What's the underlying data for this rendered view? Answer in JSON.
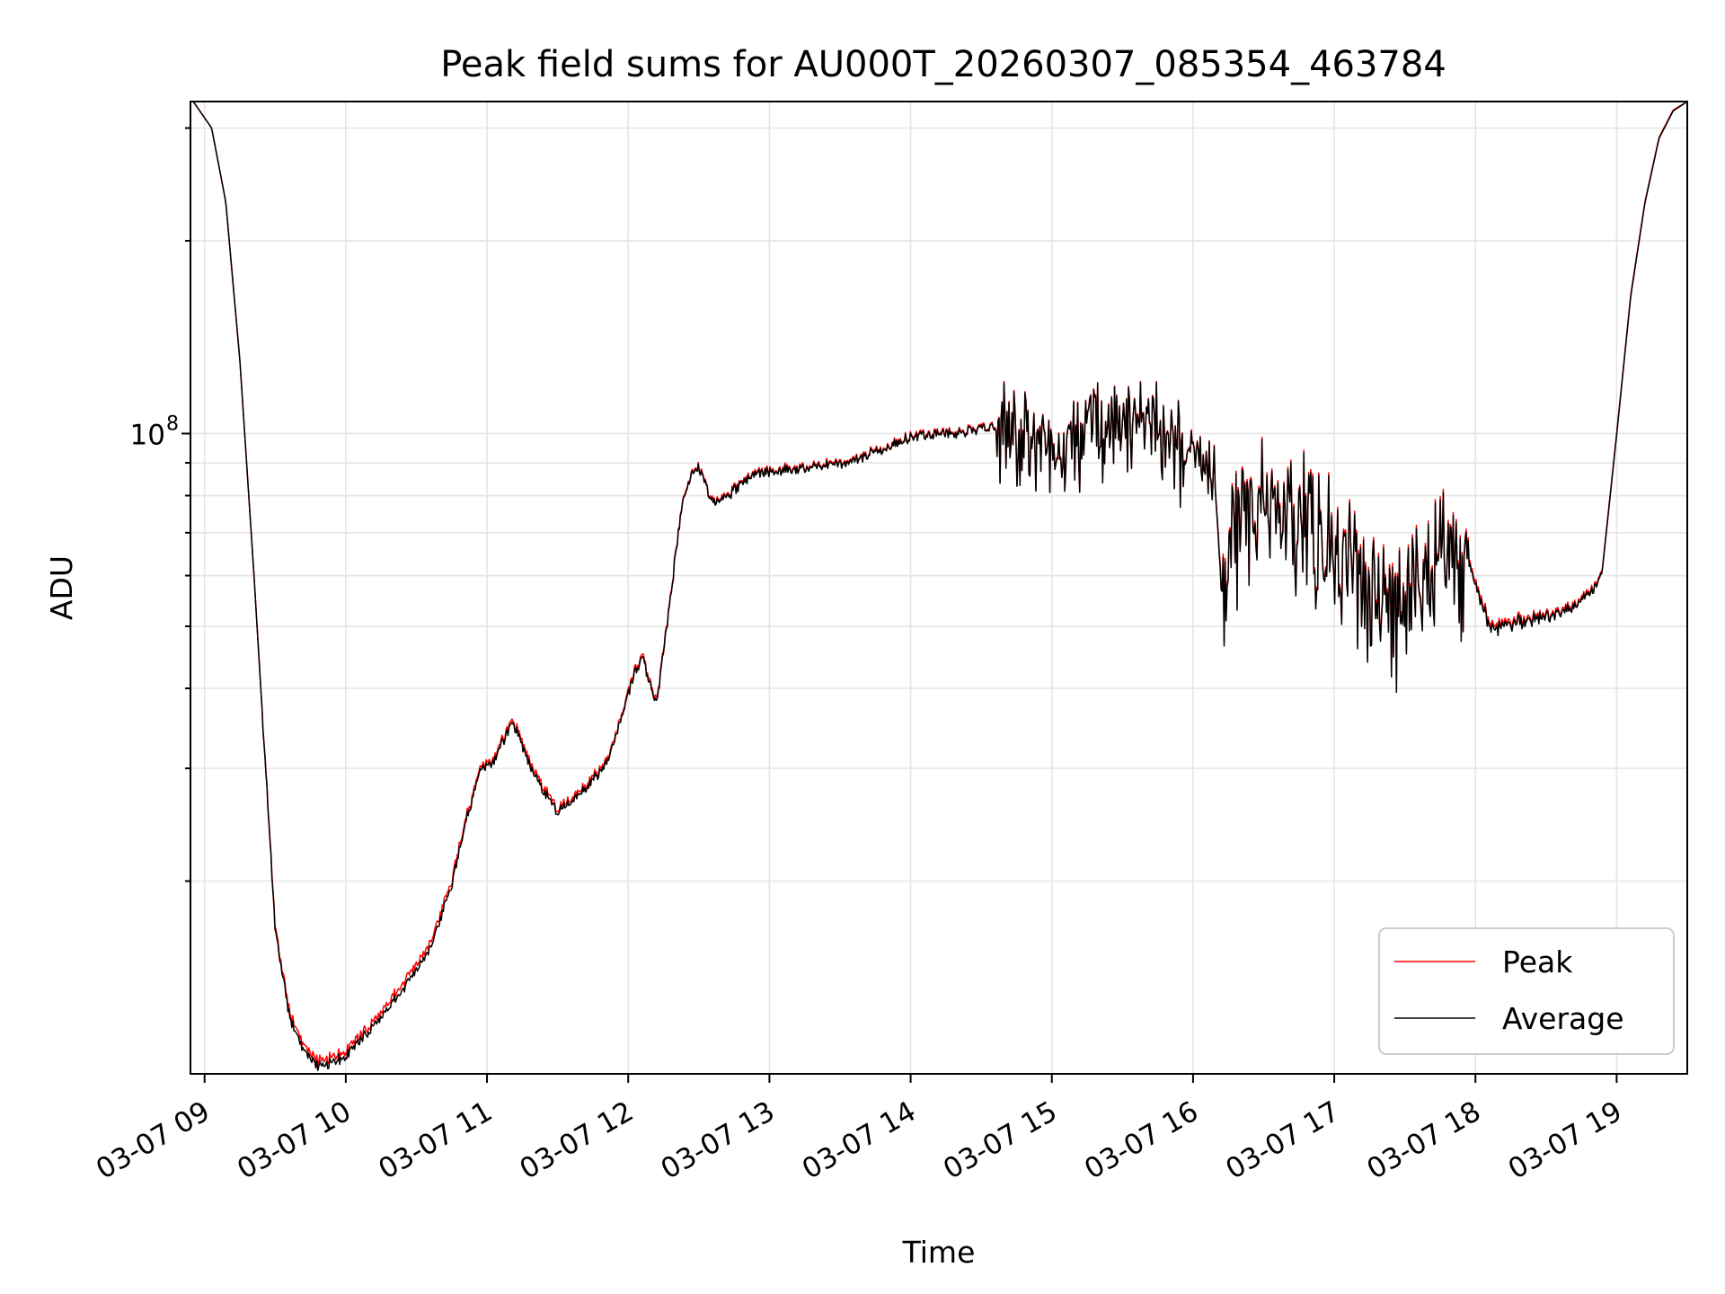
{
  "chart_data": {
    "type": "line",
    "title": "Peak field sums for AU000T_20260307_085354_463784",
    "xlabel": "Time",
    "ylabel": "ADU",
    "x_unit": "hours since 2026-03-07 00:00",
    "xlim": [
      8.9,
      19.5
    ],
    "y_scale": "log",
    "ylim": [
      10000000,
      330000000
    ],
    "x_ticks": [
      {
        "value": 9,
        "label": "03-07 09"
      },
      {
        "value": 10,
        "label": "03-07 10"
      },
      {
        "value": 11,
        "label": "03-07 11"
      },
      {
        "value": 12,
        "label": "03-07 12"
      },
      {
        "value": 13,
        "label": "03-07 13"
      },
      {
        "value": 14,
        "label": "03-07 14"
      },
      {
        "value": 15,
        "label": "03-07 15"
      },
      {
        "value": 16,
        "label": "03-07 16"
      },
      {
        "value": 17,
        "label": "03-07 17"
      },
      {
        "value": 18,
        "label": "03-07 18"
      },
      {
        "value": 19,
        "label": "03-07 19"
      }
    ],
    "y_major_ticks": [
      {
        "value": 100000000,
        "base": "10",
        "exp": "8"
      }
    ],
    "y_minor_ticks": [
      20000000,
      30000000,
      40000000,
      50000000,
      60000000,
      70000000,
      80000000,
      90000000,
      200000000,
      300000000
    ],
    "grid": true,
    "legend_position": "lower-right",
    "series": [
      {
        "name": "Peak",
        "color": "#ff0000",
        "noise": 0.022,
        "x": [
          8.92,
          9.05,
          9.15,
          9.25,
          9.35,
          9.5,
          9.6,
          9.7,
          9.8,
          9.9,
          10.0,
          10.2,
          10.4,
          10.6,
          10.75,
          10.85,
          10.95,
          11.05,
          11.18,
          11.3,
          11.4,
          11.5,
          11.6,
          11.75,
          11.85,
          11.95,
          12.03,
          12.1,
          12.2,
          12.3,
          12.38,
          12.45,
          12.5,
          12.6,
          12.7,
          12.8,
          12.9,
          13.1,
          13.3,
          13.5,
          13.7,
          13.9,
          14.0,
          14.2,
          14.4,
          14.6,
          14.8,
          15.0,
          15.2,
          15.4,
          15.6,
          15.8,
          15.9,
          16.0,
          16.15,
          16.2,
          16.3,
          16.5,
          16.7,
          16.9,
          17.0,
          17.2,
          17.4,
          17.6,
          17.8,
          17.95,
          18.1,
          18.3,
          18.5,
          18.7,
          18.85,
          18.9,
          19.0,
          19.1,
          19.2,
          19.3,
          19.4,
          19.5
        ],
        "y": [
          330000000,
          300000000,
          230000000,
          130000000,
          60000000,
          17000000,
          12500000,
          11000000,
          10500000,
          10600000,
          10900000,
          12100000,
          13800000,
          16000000,
          20000000,
          25000000,
          30000000,
          31000000,
          36000000,
          31000000,
          28000000,
          26000000,
          27000000,
          29000000,
          31000000,
          36000000,
          42000000,
          45000000,
          38000000,
          56000000,
          78000000,
          87000000,
          89000000,
          78000000,
          80000000,
          84000000,
          87000000,
          88000000,
          89000000,
          90000000,
          93000000,
          97000000,
          99000000,
          100000000,
          101000000,
          103000000,
          98000000,
          95000000,
          97000000,
          105000000,
          103000000,
          101000000,
          96000000,
          93000000,
          88000000,
          58000000,
          70000000,
          82000000,
          78000000,
          72000000,
          66000000,
          62000000,
          54000000,
          60000000,
          66000000,
          64000000,
          50000000,
          51000000,
          52000000,
          54000000,
          58000000,
          62000000,
          100000000,
          165000000,
          230000000,
          290000000,
          320000000,
          330000000
        ],
        "noisy_ranges": [
          [
            14.6,
            15.95,
            0.18
          ],
          [
            15.95,
            16.15,
            0.12
          ],
          [
            16.2,
            17.95,
            0.26
          ],
          [
            18.05,
            18.55,
            0.03
          ]
        ]
      },
      {
        "name": "Average",
        "color": "#000000",
        "noise": 0.02,
        "x": [
          8.92,
          9.05,
          9.15,
          9.25,
          9.35,
          9.5,
          9.6,
          9.7,
          9.8,
          9.9,
          10.0,
          10.2,
          10.4,
          10.6,
          10.75,
          10.85,
          10.95,
          11.05,
          11.18,
          11.3,
          11.4,
          11.5,
          11.6,
          11.75,
          11.85,
          11.95,
          12.03,
          12.1,
          12.2,
          12.3,
          12.38,
          12.45,
          12.5,
          12.6,
          12.7,
          12.8,
          12.9,
          13.1,
          13.3,
          13.5,
          13.7,
          13.9,
          14.0,
          14.2,
          14.4,
          14.6,
          14.8,
          15.0,
          15.2,
          15.4,
          15.6,
          15.8,
          15.9,
          16.0,
          16.15,
          16.2,
          16.3,
          16.5,
          16.7,
          16.9,
          17.0,
          17.2,
          17.4,
          17.6,
          17.8,
          17.95,
          18.1,
          18.3,
          18.5,
          18.7,
          18.85,
          18.9,
          19.0,
          19.1,
          19.2,
          19.3,
          19.4,
          19.5
        ],
        "y": [
          330000000,
          300000000,
          230000000,
          130000000,
          60000000,
          16800000,
          12300000,
          10800000,
          10300000,
          10400000,
          10700000,
          11900000,
          13500000,
          15700000,
          19700000,
          24700000,
          29700000,
          30700000,
          35600000,
          30600000,
          27600000,
          25700000,
          26700000,
          28700000,
          30700000,
          35700000,
          41600000,
          44600000,
          37600000,
          55600000,
          77600000,
          86600000,
          88600000,
          77600000,
          79600000,
          83600000,
          86600000,
          87600000,
          88600000,
          89600000,
          92600000,
          96600000,
          98600000,
          99600000,
          100600000,
          102600000,
          97600000,
          94600000,
          96600000,
          104600000,
          102600000,
          100600000,
          95600000,
          92600000,
          87600000,
          57300000,
          69300000,
          81300000,
          77300000,
          71300000,
          65300000,
          61300000,
          53300000,
          59300000,
          65300000,
          63300000,
          49400000,
          50500000,
          51600000,
          53600000,
          57600000,
          61600000,
          99600000,
          164000000,
          229000000,
          289000000,
          319000000,
          330000000
        ],
        "noisy_ranges": [
          [
            14.6,
            15.95,
            0.18
          ],
          [
            15.95,
            16.15,
            0.12
          ],
          [
            16.2,
            17.95,
            0.26
          ],
          [
            18.05,
            18.55,
            0.03
          ]
        ]
      }
    ]
  }
}
